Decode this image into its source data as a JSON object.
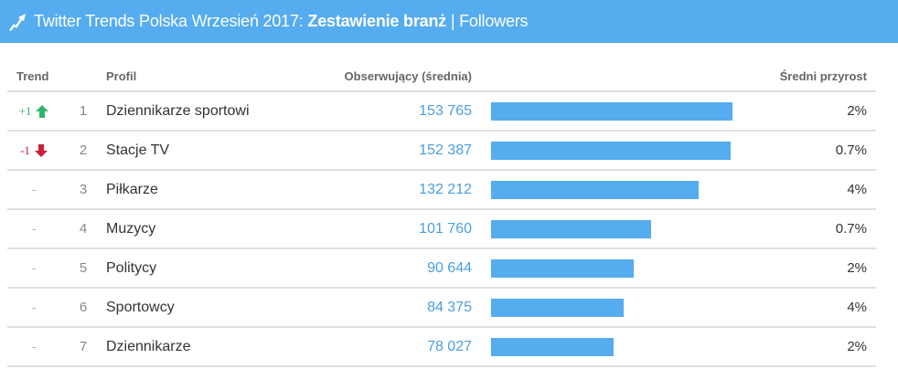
{
  "header": {
    "icon": "trend-up-icon",
    "title_prefix": "Twitter Trends Polska Wrzesień 2017: ",
    "title_bold": "Zestawienie branż",
    "title_suffix": " | Followers",
    "bg_color": "#55acee"
  },
  "table": {
    "columns": {
      "trend": "Trend",
      "profile": "Profil",
      "followers": "Obserwujący (średnia)",
      "growth": "Średni przyrost"
    },
    "rows": [
      {
        "trend": "+1",
        "trend_dir": "up",
        "rank": "1",
        "name": "Dziennikarze sportowi",
        "followers": "153 765",
        "followers_num": 153765,
        "growth": "2%"
      },
      {
        "trend": "-1",
        "trend_dir": "down",
        "rank": "2",
        "name": "Stacje TV",
        "followers": "152 387",
        "followers_num": 152387,
        "growth": "0.7%"
      },
      {
        "trend": "-",
        "trend_dir": "none",
        "rank": "3",
        "name": "Piłkarze",
        "followers": "132 212",
        "followers_num": 132212,
        "growth": "4%"
      },
      {
        "trend": "-",
        "trend_dir": "none",
        "rank": "4",
        "name": "Muzycy",
        "followers": "101 760",
        "followers_num": 101760,
        "growth": "0.7%"
      },
      {
        "trend": "-",
        "trend_dir": "none",
        "rank": "5",
        "name": "Politycy",
        "followers": "90 644",
        "followers_num": 90644,
        "growth": "2%"
      },
      {
        "trend": "-",
        "trend_dir": "none",
        "rank": "6",
        "name": "Sportowcy",
        "followers": "84 375",
        "followers_num": 84375,
        "growth": "4%"
      },
      {
        "trend": "-",
        "trend_dir": "none",
        "rank": "7",
        "name": "Dziennikarze",
        "followers": "78 027",
        "followers_num": 78027,
        "growth": "2%"
      }
    ]
  },
  "colors": {
    "bar": "#55acee",
    "value_text": "#4a9fe0",
    "trend_up": "#2fb36b",
    "trend_down": "#cc1e3c"
  }
}
